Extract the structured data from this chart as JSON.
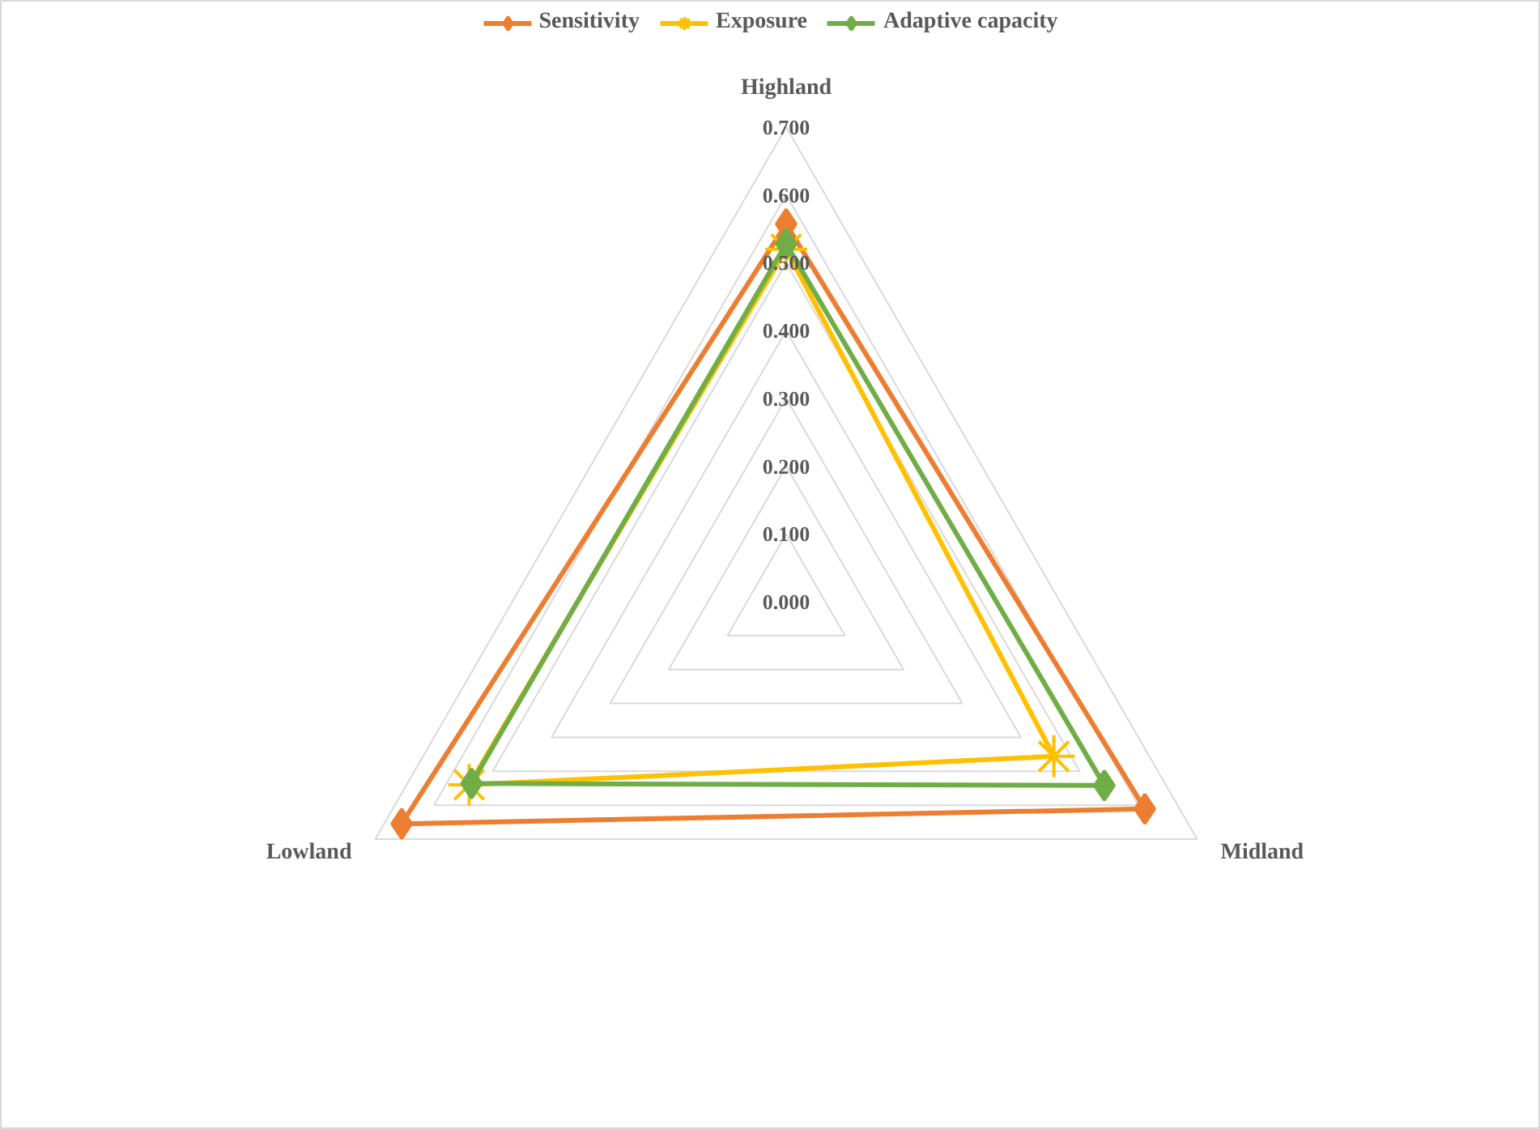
{
  "chart_data": {
    "type": "radar",
    "categories": [
      "Highland",
      "Midland",
      "Lowland"
    ],
    "series": [
      {
        "name": "Sensitivity",
        "color": "#ed7d31",
        "marker": "diamond",
        "values": [
          0.557,
          0.611,
          0.655
        ]
      },
      {
        "name": "Exposure",
        "color": "#ffc000",
        "marker": "cross",
        "values": [
          0.52,
          0.456,
          0.54
        ]
      },
      {
        "name": "Adaptive capacity",
        "color": "#70ad47",
        "marker": "diamond",
        "values": [
          0.528,
          0.542,
          0.536
        ]
      }
    ],
    "ylim": [
      0,
      0.7
    ],
    "yticks": [
      {
        "value": 0,
        "label": "0.000"
      },
      {
        "value": 0.1,
        "label": "0.100"
      },
      {
        "value": 0.2,
        "label": "0.200"
      },
      {
        "value": 0.3,
        "label": "0.300"
      },
      {
        "value": 0.4,
        "label": "0.400"
      },
      {
        "value": 0.5,
        "label": "0.500"
      },
      {
        "value": 0.6,
        "label": "0.600"
      },
      {
        "value": 0.7,
        "label": "0.700"
      }
    ],
    "grid": true,
    "legend": "top",
    "line_style": "solid"
  }
}
